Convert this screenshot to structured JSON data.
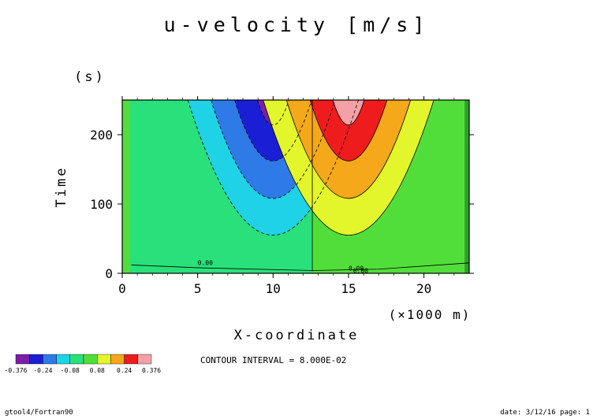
{
  "chart_data": {
    "type": "contour",
    "title": "u-velocity [m/s]",
    "xlabel": "X-coordinate",
    "x_unit": "(×1000 m)",
    "ylabel": "Time",
    "y_unit": "(s)",
    "xlim": [
      0,
      23
    ],
    "ylim": [
      0,
      250
    ],
    "x_ticks": [
      0,
      5,
      10,
      15,
      20
    ],
    "y_ticks": [
      0,
      100,
      200
    ],
    "contour_interval_text": "CONTOUR INTERVAL = 8.000E-02",
    "contour_labels": [
      "0.00",
      "0.00",
      "0.00"
    ],
    "colorbar": {
      "levels": [
        -0.376,
        -0.32,
        -0.24,
        -0.16,
        -0.08,
        0.0,
        0.08,
        0.16,
        0.24,
        0.32,
        0.376
      ],
      "tick_labels": [
        "-0.376",
        "-0.24",
        "-0.08",
        "0.08",
        "0.24",
        "0.376"
      ],
      "colors": [
        "#7a1fa8",
        "#1a1fd6",
        "#2e7ae6",
        "#1fd2e6",
        "#29e07a",
        "#52de3a",
        "#e3f52b",
        "#f5a81a",
        "#ee1c1c",
        "#f5a0a6"
      ]
    },
    "series": [
      {
        "center_x": 10,
        "extremes": [
          {
            "level": -0.08,
            "y_bottom": 55
          },
          {
            "level": -0.16,
            "y_bottom": 108
          },
          {
            "level": -0.24,
            "y_bottom": 162
          },
          {
            "level": -0.32,
            "y_bottom": 214
          }
        ]
      },
      {
        "center_x": 15,
        "extremes": [
          {
            "level": 0.08,
            "y_bottom": 55
          },
          {
            "level": 0.16,
            "y_bottom": 108
          },
          {
            "level": 0.24,
            "y_bottom": 162
          },
          {
            "level": 0.32,
            "y_bottom": 214
          }
        ]
      }
    ],
    "grid": false
  },
  "footer": {
    "left": "gtool4/Fortran90",
    "right": "date: 3/12/16 page: 1"
  }
}
